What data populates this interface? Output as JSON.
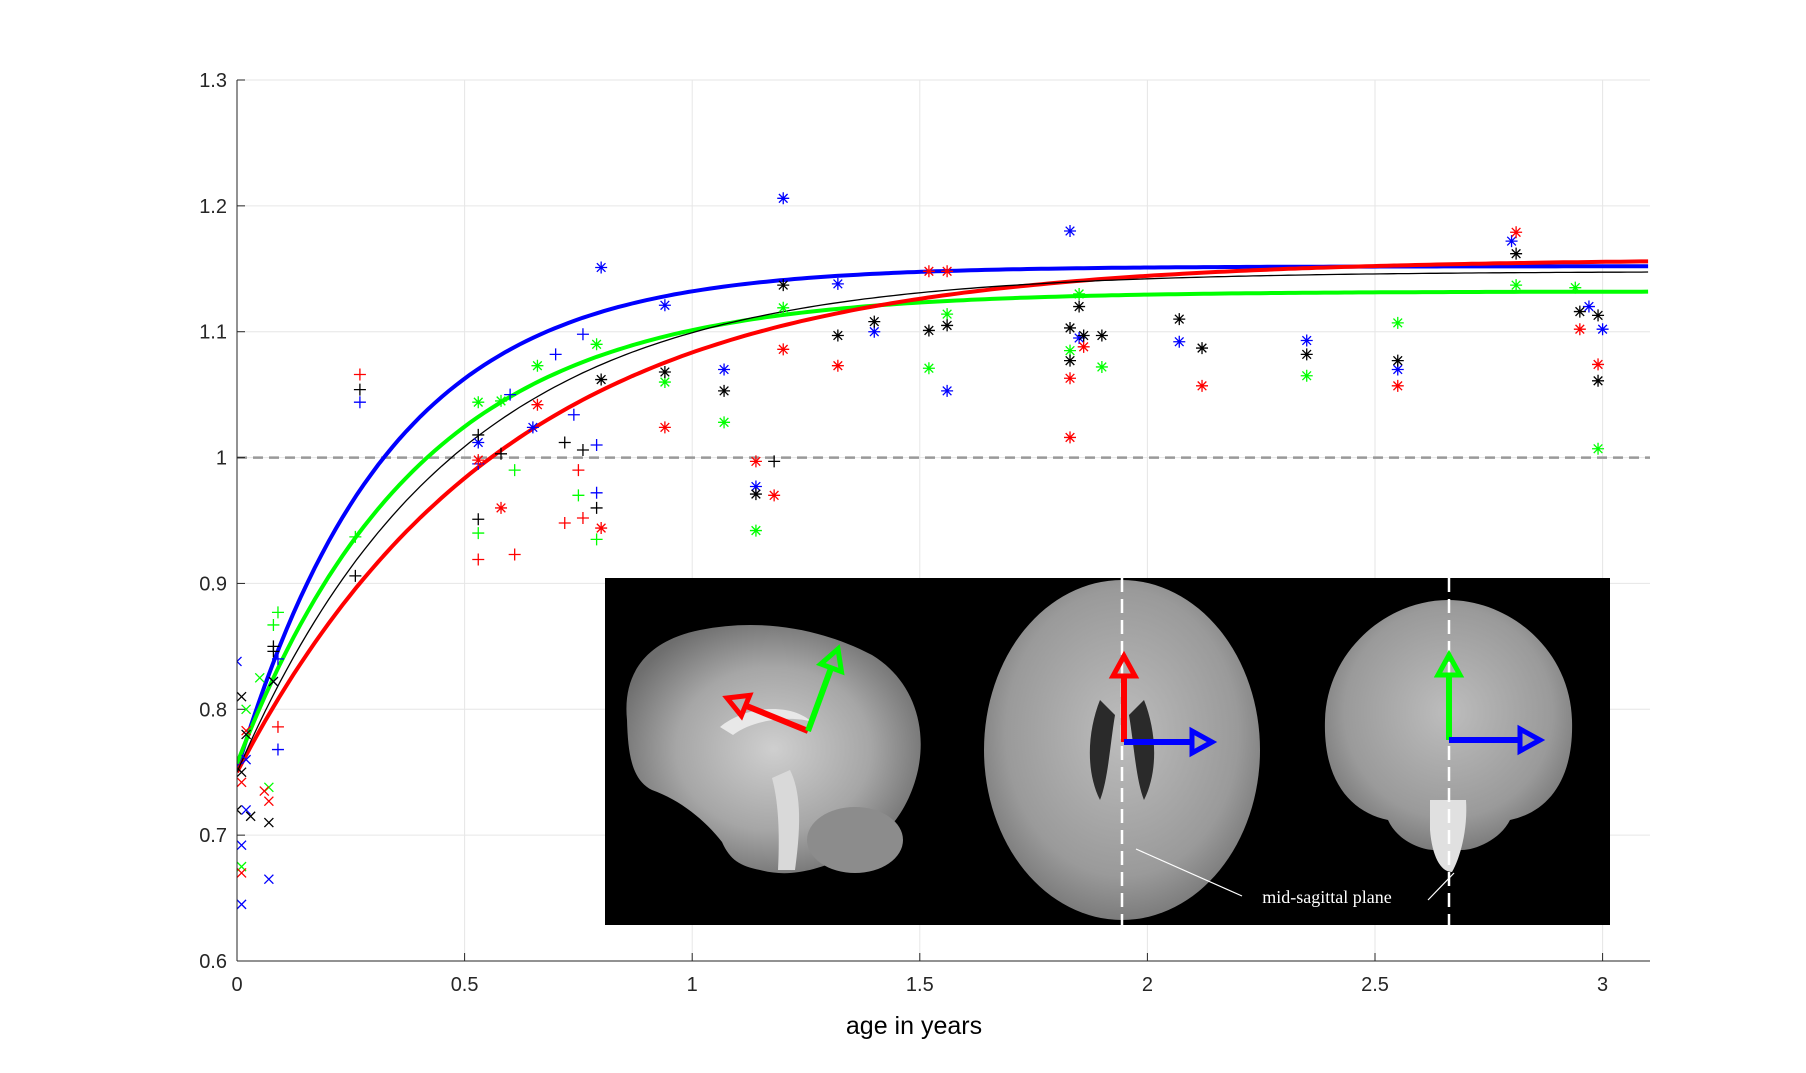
{
  "chart_data": {
    "type": "scatter",
    "title": "",
    "xlabel": "age in years",
    "ylabel": "",
    "xlim": [
      0,
      3.1
    ],
    "ylim": [
      0.6,
      1.3
    ],
    "xticks": [
      0,
      0.5,
      1,
      1.5,
      2,
      2.5,
      3
    ],
    "xtick_labels": [
      "0",
      "0.5",
      "1",
      "1.5",
      "2",
      "2.5",
      "3"
    ],
    "yticks": [
      0.6,
      0.7,
      0.8,
      0.9,
      1.0,
      1.1,
      1.2,
      1.3
    ],
    "ytick_labels": [
      "0.6",
      "0.7",
      "0.8",
      "0.9",
      "1",
      "1.1",
      "1.2",
      "1.3"
    ],
    "grid": true,
    "reference_line": {
      "y": 1.0,
      "style": "dashed",
      "color": "#999999"
    },
    "series": [
      {
        "color": "#0000ff",
        "fit_curve": {
          "a": 1.152,
          "b": 0.4,
          "k": 3.0
        },
        "points": [
          {
            "x": 0.0,
            "y": 0.838,
            "m": "x"
          },
          {
            "x": 0.01,
            "y": 0.645,
            "m": "x"
          },
          {
            "x": 0.01,
            "y": 0.692,
            "m": "x"
          },
          {
            "x": 0.02,
            "y": 0.72,
            "m": "x"
          },
          {
            "x": 0.02,
            "y": 0.76,
            "m": "x"
          },
          {
            "x": 0.07,
            "y": 0.665,
            "m": "x"
          },
          {
            "x": 0.08,
            "y": 0.822,
            "m": "x"
          },
          {
            "x": 0.09,
            "y": 0.768,
            "m": "+"
          },
          {
            "x": 0.09,
            "y": 0.84,
            "m": "+"
          },
          {
            "x": 0.27,
            "y": 1.044,
            "m": "+"
          },
          {
            "x": 0.53,
            "y": 0.995,
            "m": "+"
          },
          {
            "x": 0.6,
            "y": 1.05,
            "m": "+"
          },
          {
            "x": 0.7,
            "y": 1.082,
            "m": "+"
          },
          {
            "x": 0.74,
            "y": 1.034,
            "m": "+"
          },
          {
            "x": 0.76,
            "y": 1.098,
            "m": "+"
          },
          {
            "x": 0.79,
            "y": 0.972,
            "m": "+"
          },
          {
            "x": 0.79,
            "y": 1.01,
            "m": "+"
          },
          {
            "x": 0.53,
            "y": 1.012,
            "m": "*"
          },
          {
            "x": 0.65,
            "y": 1.024,
            "m": "*"
          },
          {
            "x": 0.8,
            "y": 1.151,
            "m": "*"
          },
          {
            "x": 0.94,
            "y": 1.121,
            "m": "*"
          },
          {
            "x": 1.07,
            "y": 1.07,
            "m": "*"
          },
          {
            "x": 1.14,
            "y": 0.977,
            "m": "*"
          },
          {
            "x": 1.2,
            "y": 1.206,
            "m": "*"
          },
          {
            "x": 1.32,
            "y": 1.138,
            "m": "*"
          },
          {
            "x": 1.4,
            "y": 1.1,
            "m": "*"
          },
          {
            "x": 1.56,
            "y": 1.053,
            "m": "*"
          },
          {
            "x": 1.83,
            "y": 1.18,
            "m": "*"
          },
          {
            "x": 1.85,
            "y": 1.095,
            "m": "*"
          },
          {
            "x": 2.07,
            "y": 1.092,
            "m": "*"
          },
          {
            "x": 2.35,
            "y": 1.093,
            "m": "*"
          },
          {
            "x": 2.55,
            "y": 1.07,
            "m": "*"
          },
          {
            "x": 2.8,
            "y": 1.172,
            "m": "*"
          },
          {
            "x": 2.97,
            "y": 1.12,
            "m": "*"
          },
          {
            "x": 3.0,
            "y": 1.102,
            "m": "*"
          }
        ]
      },
      {
        "color": "#00ff00",
        "fit_curve": {
          "a": 1.132,
          "b": 0.375,
          "k": 2.5
        },
        "points": [
          {
            "x": 0.01,
            "y": 0.675,
            "m": "x"
          },
          {
            "x": 0.02,
            "y": 0.8,
            "m": "x"
          },
          {
            "x": 0.05,
            "y": 0.825,
            "m": "x"
          },
          {
            "x": 0.07,
            "y": 0.738,
            "m": "x"
          },
          {
            "x": 0.08,
            "y": 0.867,
            "m": "+"
          },
          {
            "x": 0.09,
            "y": 0.877,
            "m": "+"
          },
          {
            "x": 0.26,
            "y": 0.937,
            "m": "+"
          },
          {
            "x": 0.53,
            "y": 0.94,
            "m": "+"
          },
          {
            "x": 0.61,
            "y": 0.99,
            "m": "+"
          },
          {
            "x": 0.75,
            "y": 0.97,
            "m": "+"
          },
          {
            "x": 0.79,
            "y": 0.935,
            "m": "+"
          },
          {
            "x": 0.53,
            "y": 1.044,
            "m": "*"
          },
          {
            "x": 0.58,
            "y": 1.045,
            "m": "*"
          },
          {
            "x": 0.66,
            "y": 1.073,
            "m": "*"
          },
          {
            "x": 0.79,
            "y": 1.09,
            "m": "*"
          },
          {
            "x": 0.94,
            "y": 1.06,
            "m": "*"
          },
          {
            "x": 1.07,
            "y": 1.028,
            "m": "*"
          },
          {
            "x": 1.14,
            "y": 0.942,
            "m": "*"
          },
          {
            "x": 1.2,
            "y": 1.119,
            "m": "*"
          },
          {
            "x": 1.52,
            "y": 1.071,
            "m": "*"
          },
          {
            "x": 1.56,
            "y": 1.114,
            "m": "*"
          },
          {
            "x": 1.83,
            "y": 1.085,
            "m": "*"
          },
          {
            "x": 1.85,
            "y": 1.13,
            "m": "*"
          },
          {
            "x": 1.9,
            "y": 1.072,
            "m": "*"
          },
          {
            "x": 2.35,
            "y": 1.065,
            "m": "*"
          },
          {
            "x": 2.55,
            "y": 1.107,
            "m": "*"
          },
          {
            "x": 2.81,
            "y": 1.137,
            "m": "*"
          },
          {
            "x": 2.94,
            "y": 1.135,
            "m": "*"
          },
          {
            "x": 2.99,
            "y": 1.007,
            "m": "*"
          }
        ]
      },
      {
        "color": "#ff0000",
        "fit_curve": {
          "a": 1.158,
          "b": 0.408,
          "k": 1.7
        },
        "points": [
          {
            "x": 0.01,
            "y": 0.67,
            "m": "x"
          },
          {
            "x": 0.01,
            "y": 0.742,
            "m": "x"
          },
          {
            "x": 0.02,
            "y": 0.783,
            "m": "x"
          },
          {
            "x": 0.06,
            "y": 0.735,
            "m": "x"
          },
          {
            "x": 0.07,
            "y": 0.727,
            "m": "x"
          },
          {
            "x": 0.09,
            "y": 0.786,
            "m": "+"
          },
          {
            "x": 0.27,
            "y": 1.066,
            "m": "+"
          },
          {
            "x": 0.53,
            "y": 0.919,
            "m": "+"
          },
          {
            "x": 0.61,
            "y": 0.923,
            "m": "+"
          },
          {
            "x": 0.72,
            "y": 0.948,
            "m": "+"
          },
          {
            "x": 0.75,
            "y": 0.99,
            "m": "+"
          },
          {
            "x": 0.76,
            "y": 0.952,
            "m": "+"
          },
          {
            "x": 0.53,
            "y": 0.998,
            "m": "*"
          },
          {
            "x": 0.58,
            "y": 0.96,
            "m": "*"
          },
          {
            "x": 0.66,
            "y": 1.042,
            "m": "*"
          },
          {
            "x": 0.8,
            "y": 0.944,
            "m": "*"
          },
          {
            "x": 0.94,
            "y": 1.024,
            "m": "*"
          },
          {
            "x": 1.14,
            "y": 0.997,
            "m": "*"
          },
          {
            "x": 1.18,
            "y": 0.97,
            "m": "*"
          },
          {
            "x": 1.2,
            "y": 1.086,
            "m": "*"
          },
          {
            "x": 1.32,
            "y": 1.073,
            "m": "*"
          },
          {
            "x": 1.52,
            "y": 1.148,
            "m": "*"
          },
          {
            "x": 1.56,
            "y": 1.148,
            "m": "*"
          },
          {
            "x": 1.83,
            "y": 1.016,
            "m": "*"
          },
          {
            "x": 1.83,
            "y": 1.063,
            "m": "*"
          },
          {
            "x": 1.86,
            "y": 1.088,
            "m": "*"
          },
          {
            "x": 2.12,
            "y": 1.057,
            "m": "*"
          },
          {
            "x": 2.55,
            "y": 1.057,
            "m": "*"
          },
          {
            "x": 2.81,
            "y": 1.179,
            "m": "*"
          },
          {
            "x": 2.95,
            "y": 1.102,
            "m": "*"
          },
          {
            "x": 2.99,
            "y": 1.074,
            "m": "*"
          }
        ]
      },
      {
        "color": "#000000",
        "fit_curve": {
          "a": 1.148,
          "b": 0.398,
          "k": 2.1
        },
        "points": [
          {
            "x": 0.0,
            "y": 0.72,
            "m": "x"
          },
          {
            "x": 0.01,
            "y": 0.75,
            "m": "x"
          },
          {
            "x": 0.01,
            "y": 0.81,
            "m": "x"
          },
          {
            "x": 0.02,
            "y": 0.78,
            "m": "x"
          },
          {
            "x": 0.03,
            "y": 0.715,
            "m": "x"
          },
          {
            "x": 0.07,
            "y": 0.71,
            "m": "x"
          },
          {
            "x": 0.08,
            "y": 0.822,
            "m": "x"
          },
          {
            "x": 0.08,
            "y": 0.846,
            "m": "+"
          },
          {
            "x": 0.08,
            "y": 0.85,
            "m": "+"
          },
          {
            "x": 0.26,
            "y": 0.906,
            "m": "+"
          },
          {
            "x": 0.27,
            "y": 1.054,
            "m": "+"
          },
          {
            "x": 0.53,
            "y": 0.951,
            "m": "+"
          },
          {
            "x": 0.53,
            "y": 1.018,
            "m": "+"
          },
          {
            "x": 0.58,
            "y": 1.003,
            "m": "+"
          },
          {
            "x": 0.72,
            "y": 1.012,
            "m": "+"
          },
          {
            "x": 0.76,
            "y": 1.006,
            "m": "+"
          },
          {
            "x": 0.79,
            "y": 0.96,
            "m": "+"
          },
          {
            "x": 1.18,
            "y": 0.997,
            "m": "+"
          },
          {
            "x": 0.8,
            "y": 1.062,
            "m": "*"
          },
          {
            "x": 0.94,
            "y": 1.068,
            "m": "*"
          },
          {
            "x": 1.07,
            "y": 1.053,
            "m": "*"
          },
          {
            "x": 1.14,
            "y": 0.971,
            "m": "*"
          },
          {
            "x": 1.2,
            "y": 1.137,
            "m": "*"
          },
          {
            "x": 1.32,
            "y": 1.097,
            "m": "*"
          },
          {
            "x": 1.4,
            "y": 1.108,
            "m": "*"
          },
          {
            "x": 1.52,
            "y": 1.101,
            "m": "*"
          },
          {
            "x": 1.56,
            "y": 1.105,
            "m": "*"
          },
          {
            "x": 1.83,
            "y": 1.077,
            "m": "*"
          },
          {
            "x": 1.83,
            "y": 1.103,
            "m": "*"
          },
          {
            "x": 1.85,
            "y": 1.12,
            "m": "*"
          },
          {
            "x": 1.86,
            "y": 1.097,
            "m": "*"
          },
          {
            "x": 1.9,
            "y": 1.097,
            "m": "*"
          },
          {
            "x": 2.07,
            "y": 1.11,
            "m": "*"
          },
          {
            "x": 2.12,
            "y": 1.087,
            "m": "*"
          },
          {
            "x": 2.35,
            "y": 1.082,
            "m": "*"
          },
          {
            "x": 2.55,
            "y": 1.077,
            "m": "*"
          },
          {
            "x": 2.81,
            "y": 1.162,
            "m": "*"
          },
          {
            "x": 2.95,
            "y": 1.116,
            "m": "*"
          },
          {
            "x": 2.99,
            "y": 1.113,
            "m": "*"
          },
          {
            "x": 2.99,
            "y": 1.061,
            "m": "*"
          }
        ]
      }
    ]
  },
  "inset": {
    "annotation": "mid-sagittal plane",
    "views": [
      "sagittal",
      "axial",
      "coronal"
    ],
    "arrow_colors": {
      "red": "#ff0000",
      "green": "#00ff00",
      "blue": "#0000ff"
    }
  }
}
